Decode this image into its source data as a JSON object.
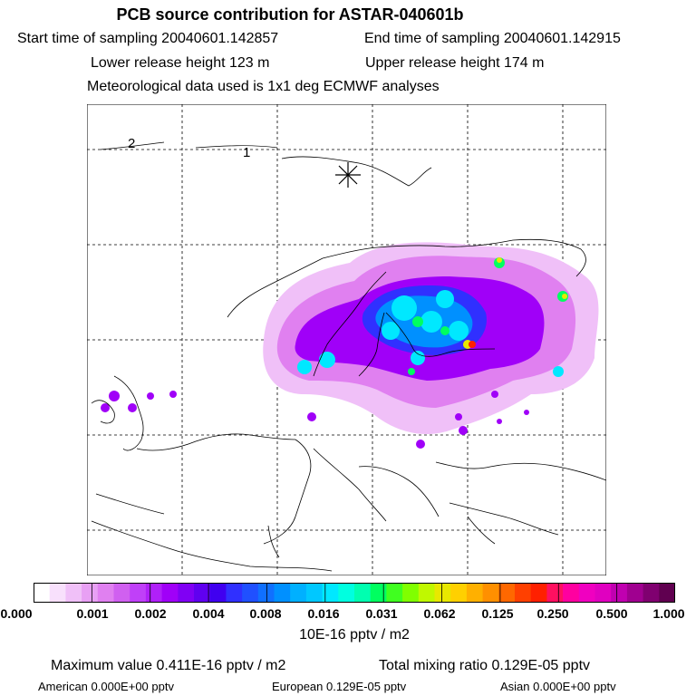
{
  "header": {
    "title": "PCB source contribution for ASTAR-040601b",
    "start_time": "Start time of sampling 20040601.142857",
    "end_time": "End time of sampling 20040601.142915",
    "lower_height": "Lower release height  123 m",
    "upper_height": "Upper release height  174 m",
    "met_data": "Meteorological data used is 1x1 deg ECMWF analyses"
  },
  "map": {
    "contour_labels": [
      "2",
      "1"
    ],
    "release_marker_icon": "asterisk-icon",
    "plume_colors": {
      "light": "#f0c0f8",
      "magenta": "#e080f0",
      "purple": "#a000f8",
      "violet": "#6000f0",
      "blue": "#3030ff",
      "lightblue": "#0090ff",
      "cyan": "#00e8ff",
      "green": "#00ff60",
      "yellow": "#e8e800",
      "orange": "#ff9000",
      "red": "#ff2000"
    }
  },
  "colorbar": {
    "tick_labels": [
      "0.000",
      "0.001",
      "0.002",
      "0.004",
      "0.008",
      "0.016",
      "0.031",
      "0.062",
      "0.125",
      "0.250",
      "0.500",
      "1.000"
    ],
    "colors": [
      "#ffffff",
      "#f8e0fc",
      "#f0c0f8",
      "#e8a0f4",
      "#e080f0",
      "#d060f0",
      "#c040f8",
      "#b020f8",
      "#a000f8",
      "#8000f4",
      "#6000f0",
      "#4000f0",
      "#3030ff",
      "#2050ff",
      "#1070ff",
      "#0090ff",
      "#00b0ff",
      "#00c8ff",
      "#00e8ff",
      "#00ffe0",
      "#00ffb0",
      "#00ff60",
      "#40ff20",
      "#80ff00",
      "#c0f800",
      "#e8e800",
      "#ffd000",
      "#ffb000",
      "#ff9000",
      "#ff6800",
      "#ff4000",
      "#ff2000",
      "#ff1060",
      "#ff00a0",
      "#f000c0",
      "#e000c0",
      "#c000b0",
      "#a00090",
      "#800070",
      "#600050"
    ],
    "unit": "10E-16 pptv / m2"
  },
  "footer": {
    "max_value": "Maximum value  0.411E-16 pptv / m2",
    "total_mixing": "Total mixing ratio  0.129E-05 pptv",
    "american": "American  0.000E+00 pptv",
    "european": "European  0.129E-05 pptv",
    "asian": "Asian  0.000E+00 pptv"
  }
}
